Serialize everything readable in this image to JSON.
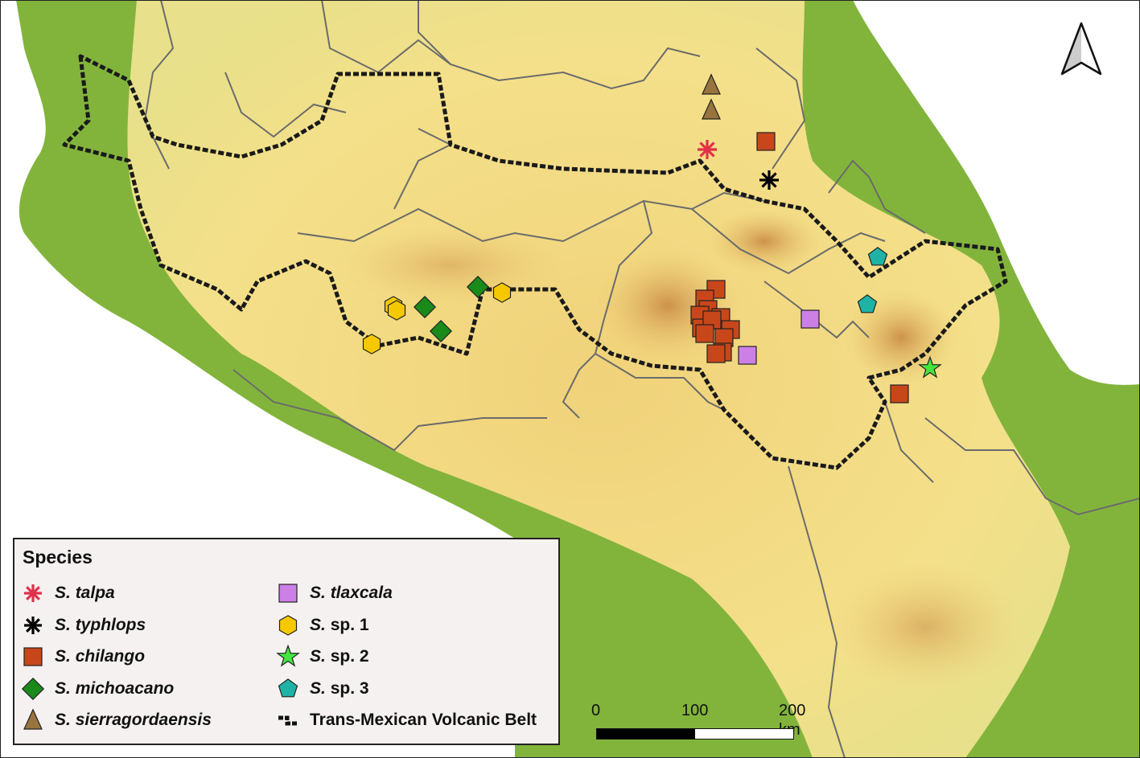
{
  "legend": {
    "title": "Species",
    "items": [
      {
        "key": "talpa",
        "genus": "S.",
        "epithet": "talpa",
        "symbol": "asterisk",
        "color": "#e0304a"
      },
      {
        "key": "typhlops",
        "genus": "S.",
        "epithet": "typhlops",
        "symbol": "asterisk",
        "color": "#000000"
      },
      {
        "key": "chilango",
        "genus": "S.",
        "epithet": "chilango",
        "symbol": "square",
        "color": "#c8471a"
      },
      {
        "key": "michoacano",
        "genus": "S.",
        "epithet": "michoacano",
        "symbol": "diamond",
        "color": "#1a8a1a"
      },
      {
        "key": "sierragordaensis",
        "genus": "S.",
        "epithet": "sierragordaensis",
        "symbol": "triangle",
        "color": "#98743f"
      },
      {
        "key": "tlaxcala",
        "genus": "S.",
        "epithet": "tlaxcala",
        "symbol": "square",
        "color": "#cc80e6"
      },
      {
        "key": "sp1",
        "genus": "S.",
        "epithet": "sp. 1",
        "symbol": "hexagon",
        "color": "#f6c800"
      },
      {
        "key": "sp2",
        "genus": "S.",
        "epithet": "sp. 2",
        "symbol": "star",
        "color": "#44e63e"
      },
      {
        "key": "sp3",
        "genus": "S.",
        "epithet": "sp. 3",
        "symbol": "pentagon",
        "color": "#1fb3a6"
      }
    ],
    "boundary_label": "Trans-Mexican Volcanic Belt"
  },
  "scale_bar": {
    "labels": [
      "0",
      "100",
      "200 km"
    ]
  },
  "north_arrow": {
    "icon": "north-arrow-icon"
  },
  "colors": {
    "lowland": "#7fb23a",
    "upland": "#f2dc7c",
    "highland": "#d99a4a",
    "sea": "#ffffff",
    "borders": "#6b6b6b"
  }
}
